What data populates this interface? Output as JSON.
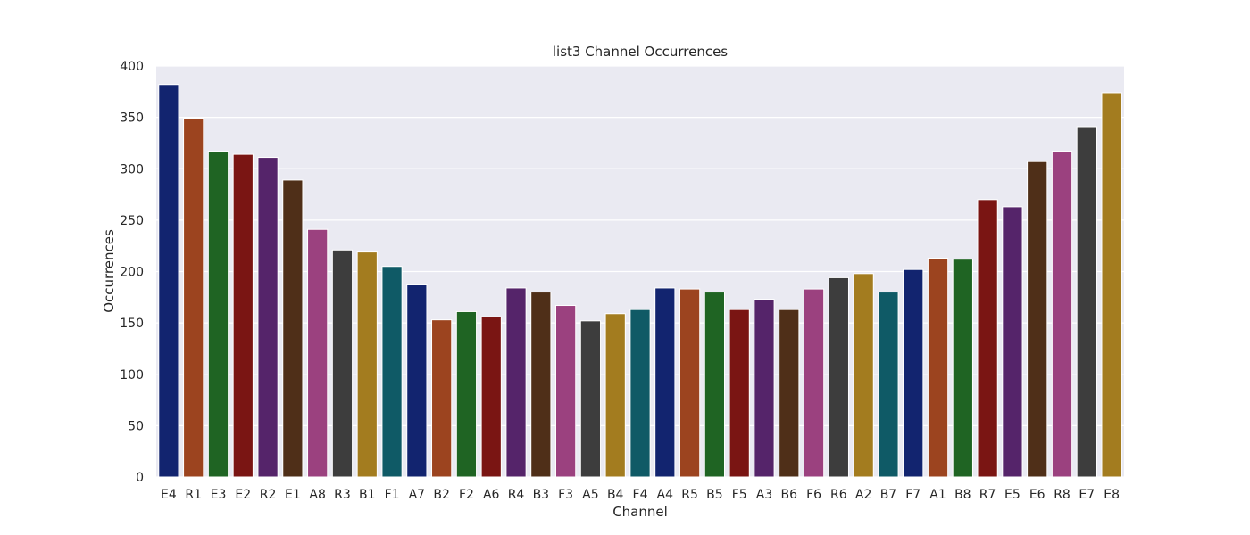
{
  "chart_data": {
    "type": "bar",
    "title": "list3 Channel Occurrences",
    "xlabel": "Channel",
    "ylabel": "Occurrences",
    "ylim": [
      0,
      400
    ],
    "yticks": [
      0,
      50,
      100,
      150,
      200,
      250,
      300,
      350,
      400
    ],
    "grid": true,
    "background": "#eaeaf2",
    "categories": [
      "E4",
      "R1",
      "E3",
      "E2",
      "R2",
      "E1",
      "A8",
      "R3",
      "B1",
      "F1",
      "A7",
      "B2",
      "F2",
      "A6",
      "R4",
      "B3",
      "F3",
      "A5",
      "B4",
      "F4",
      "A4",
      "R5",
      "B5",
      "F5",
      "A3",
      "B6",
      "F6",
      "R6",
      "A2",
      "B7",
      "F7",
      "A1",
      "B8",
      "R7",
      "E5",
      "E6",
      "R8",
      "E7",
      "E8"
    ],
    "values": [
      382,
      349,
      317,
      314,
      311,
      289,
      241,
      221,
      219,
      205,
      187,
      153,
      161,
      156,
      184,
      180,
      167,
      152,
      159,
      163,
      184,
      183,
      180,
      163,
      173,
      163,
      183,
      194,
      198,
      180,
      202,
      213,
      212,
      270,
      263,
      307,
      317,
      341,
      374
    ],
    "palette": [
      "#12246f",
      "#9c441f",
      "#1f6423",
      "#7a1513",
      "#55246a",
      "#4f2f18",
      "#9b417f",
      "#3d3d3d",
      "#a37c1f",
      "#0f5a66"
    ]
  }
}
